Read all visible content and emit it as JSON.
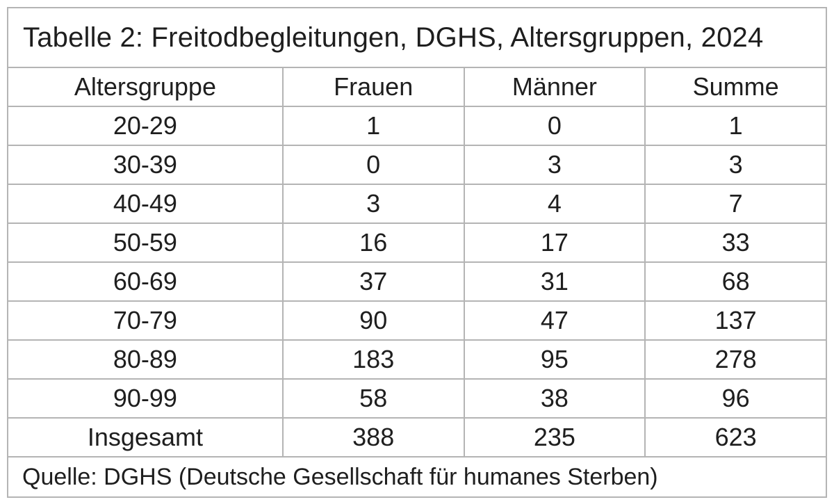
{
  "chart_data": {
    "type": "table",
    "title": "Tabelle 2: Freitodbegleitungen, DGHS, Altersgruppen, 2024",
    "columns": [
      "Altersgruppe",
      "Frauen",
      "Männer",
      "Summe"
    ],
    "rows": [
      [
        "20-29",
        "1",
        "0",
        "1"
      ],
      [
        "30-39",
        "0",
        "3",
        "3"
      ],
      [
        "40-49",
        "3",
        "4",
        "7"
      ],
      [
        "50-59",
        "16",
        "17",
        "33"
      ],
      [
        "60-69",
        "37",
        "31",
        "68"
      ],
      [
        "70-79",
        "90",
        "47",
        "137"
      ],
      [
        "80-89",
        "183",
        "95",
        "278"
      ],
      [
        "90-99",
        "58",
        "38",
        "96"
      ],
      [
        "Insgesamt",
        "388",
        "235",
        "623"
      ]
    ],
    "source": "Quelle: DGHS (Deutsche Gesellschaft für humanes Sterben)",
    "layout": "grid on, all cells bordered, title row left-aligned, data centered, source row left-aligned"
  },
  "colors": {
    "text": "#1e1e1e",
    "border": "#b4b4b4",
    "background": "#ffffff"
  }
}
